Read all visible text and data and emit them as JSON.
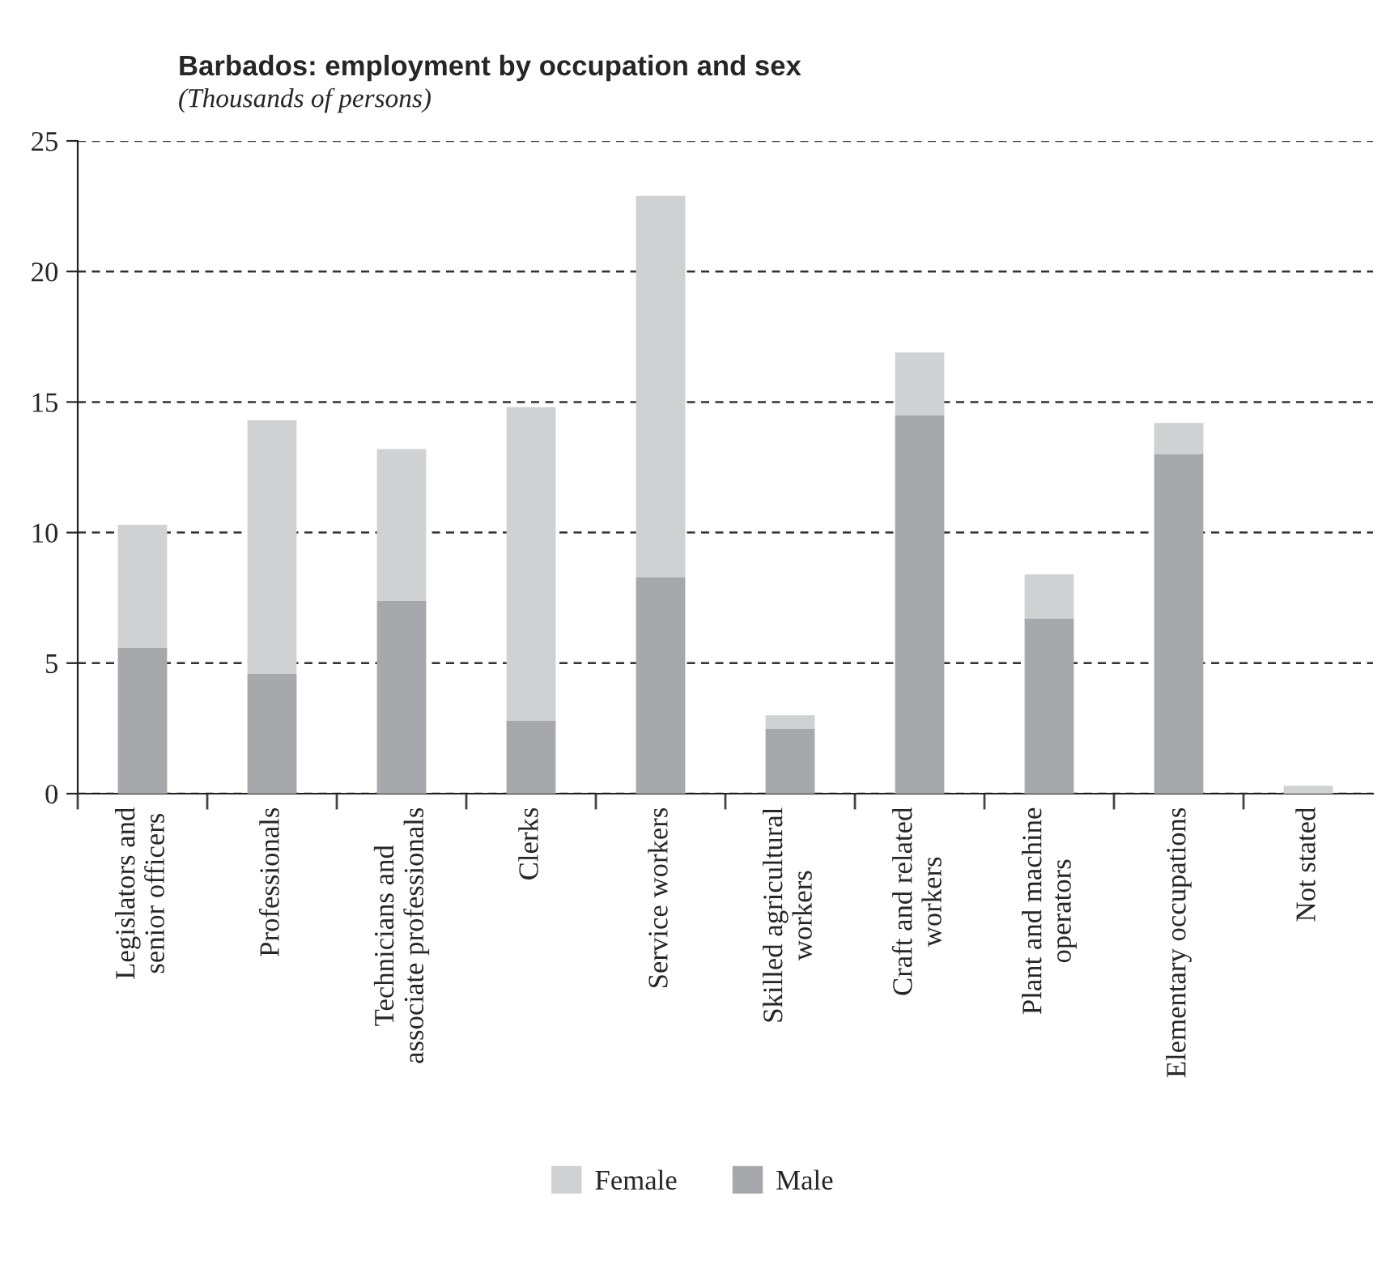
{
  "chart_data": {
    "type": "bar",
    "title": "Barbados: employment by occupation and sex",
    "subtitle": "(Thousands of persons)",
    "categories": [
      "Legislators and\nsenior officers",
      "Professionals",
      "Technicians and\nassociate professionals",
      "Clerks",
      "Service workers",
      "Skilled agricultural\nworkers",
      "Craft and related\nworkers",
      "Plant and machine\noperators",
      "Elementary occupations",
      "Not stated"
    ],
    "series": [
      {
        "name": "Male",
        "color": "#a7a8ab",
        "values": [
          5.6,
          4.6,
          7.4,
          2.8,
          8.3,
          2.5,
          14.5,
          6.7,
          13.0,
          0.0
        ]
      },
      {
        "name": "Female",
        "color": "#d0d1d3",
        "values": [
          4.7,
          9.7,
          5.8,
          12.0,
          14.6,
          0.5,
          2.4,
          1.7,
          1.2,
          0.3
        ]
      }
    ],
    "stacked": true,
    "ylim": [
      0,
      25
    ],
    "yticks": [
      0,
      5,
      10,
      15,
      20,
      25
    ],
    "grid": "y",
    "legend": "bottom"
  }
}
